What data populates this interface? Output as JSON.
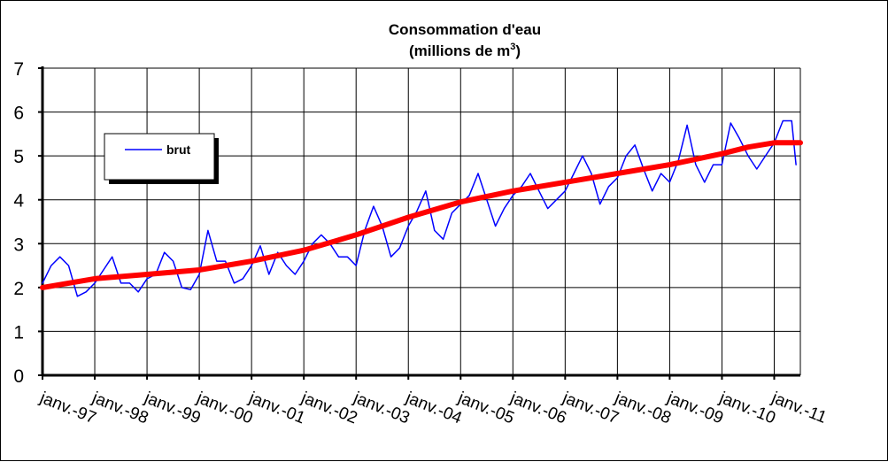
{
  "chart_data": {
    "type": "line",
    "title": "Consommation d'eau",
    "subtitle_prefix": "(millions de m",
    "subtitle_sup": "3",
    "subtitle_suffix": ")",
    "xlabel": "",
    "ylabel": "",
    "ylim": [
      0,
      7
    ],
    "yticks": [
      "0",
      "1",
      "2",
      "3",
      "4",
      "5",
      "6",
      "7"
    ],
    "xlim": [
      "1997-01",
      "2011-07"
    ],
    "xticks": [
      {
        "date": "1997-01",
        "label": "janv.-97"
      },
      {
        "date": "1998-01",
        "label": "janv.-98"
      },
      {
        "date": "1999-01",
        "label": "janv.-99"
      },
      {
        "date": "2000-01",
        "label": "janv.-00"
      },
      {
        "date": "2001-01",
        "label": "janv.-01"
      },
      {
        "date": "2002-01",
        "label": "janv.-02"
      },
      {
        "date": "2003-01",
        "label": "janv.-03"
      },
      {
        "date": "2004-01",
        "label": "janv.-04"
      },
      {
        "date": "2005-01",
        "label": "janv.-05"
      },
      {
        "date": "2006-01",
        "label": "janv.-06"
      },
      {
        "date": "2007-01",
        "label": "janv.-07"
      },
      {
        "date": "2008-01",
        "label": "janv.-08"
      },
      {
        "date": "2009-01",
        "label": "janv.-09"
      },
      {
        "date": "2010-01",
        "label": "janv.-10"
      },
      {
        "date": "2011-01",
        "label": "janv.-11"
      }
    ],
    "grid": true,
    "legend": {
      "placement": "top-left",
      "entries": [
        "brut"
      ]
    },
    "series": [
      {
        "name": "brut",
        "color": "#0000ff",
        "x": [
          "1997-01",
          "1997-03",
          "1997-05",
          "1997-07",
          "1997-09",
          "1997-11",
          "1998-01",
          "1998-03",
          "1998-05",
          "1998-07",
          "1998-09",
          "1998-11",
          "1999-01",
          "1999-03",
          "1999-05",
          "1999-07",
          "1999-09",
          "1999-11",
          "2000-01",
          "2000-03",
          "2000-05",
          "2000-07",
          "2000-09",
          "2000-11",
          "2001-01",
          "2001-03",
          "2001-05",
          "2001-07",
          "2001-09",
          "2001-11",
          "2002-01",
          "2002-03",
          "2002-05",
          "2002-07",
          "2002-09",
          "2002-11",
          "2003-01",
          "2003-03",
          "2003-05",
          "2003-07",
          "2003-09",
          "2003-11",
          "2004-01",
          "2004-03",
          "2004-05",
          "2004-07",
          "2004-09",
          "2004-11",
          "2005-01",
          "2005-03",
          "2005-05",
          "2005-07",
          "2005-09",
          "2005-11",
          "2006-01",
          "2006-03",
          "2006-05",
          "2006-07",
          "2006-09",
          "2006-11",
          "2007-01",
          "2007-03",
          "2007-05",
          "2007-07",
          "2007-09",
          "2007-11",
          "2008-01",
          "2008-03",
          "2008-05",
          "2008-07",
          "2008-09",
          "2008-11",
          "2009-01",
          "2009-03",
          "2009-05",
          "2009-07",
          "2009-09",
          "2009-11",
          "2010-01",
          "2010-03",
          "2010-05",
          "2010-07",
          "2010-09",
          "2010-11",
          "2011-01",
          "2011-03",
          "2011-05",
          "2011-06"
        ],
        "y": [
          2.1,
          2.5,
          2.7,
          2.5,
          1.8,
          1.9,
          2.1,
          2.4,
          2.7,
          2.1,
          2.1,
          1.9,
          2.2,
          2.3,
          2.8,
          2.6,
          2.0,
          1.95,
          2.3,
          3.3,
          2.6,
          2.6,
          2.1,
          2.2,
          2.5,
          2.95,
          2.3,
          2.8,
          2.5,
          2.3,
          2.6,
          3.0,
          3.2,
          3.0,
          2.7,
          2.7,
          2.5,
          3.3,
          3.85,
          3.4,
          2.7,
          2.9,
          3.4,
          3.75,
          4.2,
          3.3,
          3.1,
          3.7,
          3.9,
          4.1,
          4.6,
          4.0,
          3.4,
          3.8,
          4.1,
          4.3,
          4.6,
          4.2,
          3.8,
          4.0,
          4.2,
          4.6,
          5.0,
          4.6,
          3.9,
          4.3,
          4.5,
          5.0,
          5.25,
          4.7,
          4.2,
          4.6,
          4.4,
          4.9,
          5.7,
          4.8,
          4.4,
          4.8,
          4.8,
          5.75,
          5.4,
          5.0,
          4.7,
          5.0,
          5.3,
          5.8,
          5.8,
          4.8
        ]
      },
      {
        "name": "",
        "color": "#ff0000",
        "x": [
          "1997-01",
          "1998-01",
          "1999-01",
          "2000-01",
          "2001-01",
          "2002-01",
          "2003-01",
          "2004-01",
          "2005-01",
          "2006-01",
          "2007-01",
          "2008-01",
          "2009-01",
          "2010-01",
          "2010-07",
          "2011-01",
          "2011-07"
        ],
        "y": [
          2.0,
          2.2,
          2.3,
          2.4,
          2.6,
          2.85,
          3.2,
          3.6,
          3.95,
          4.2,
          4.4,
          4.6,
          4.8,
          5.05,
          5.2,
          5.3,
          5.3
        ]
      }
    ]
  }
}
